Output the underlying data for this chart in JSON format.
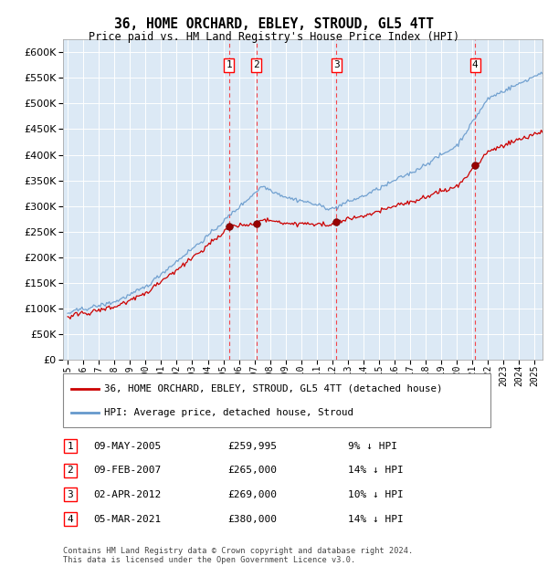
{
  "title": "36, HOME ORCHARD, EBLEY, STROUD, GL5 4TT",
  "subtitle": "Price paid vs. HM Land Registry's House Price Index (HPI)",
  "ytick_values": [
    0,
    50000,
    100000,
    150000,
    200000,
    250000,
    300000,
    350000,
    400000,
    450000,
    500000,
    550000,
    600000
  ],
  "ylim": [
    0,
    625000
  ],
  "xlim_start": 1994.7,
  "xlim_end": 2025.5,
  "background_color": "#dce9f5",
  "grid_color": "#ffffff",
  "hpi_color": "#6699cc",
  "price_color": "#cc0000",
  "transactions": [
    {
      "label": "1",
      "date": "09-MAY-2005",
      "price": 259995,
      "pct": "9%",
      "x_year": 2005.36
    },
    {
      "label": "2",
      "date": "09-FEB-2007",
      "price": 265000,
      "pct": "14%",
      "x_year": 2007.11
    },
    {
      "label": "3",
      "date": "02-APR-2012",
      "price": 269000,
      "pct": "10%",
      "x_year": 2012.25
    },
    {
      "label": "4",
      "date": "05-MAR-2021",
      "price": 380000,
      "pct": "14%",
      "x_year": 2021.17
    }
  ],
  "legend_label_price": "36, HOME ORCHARD, EBLEY, STROUD, GL5 4TT (detached house)",
  "legend_label_hpi": "HPI: Average price, detached house, Stroud",
  "footer_line1": "Contains HM Land Registry data © Crown copyright and database right 2024.",
  "footer_line2": "This data is licensed under the Open Government Licence v3.0."
}
